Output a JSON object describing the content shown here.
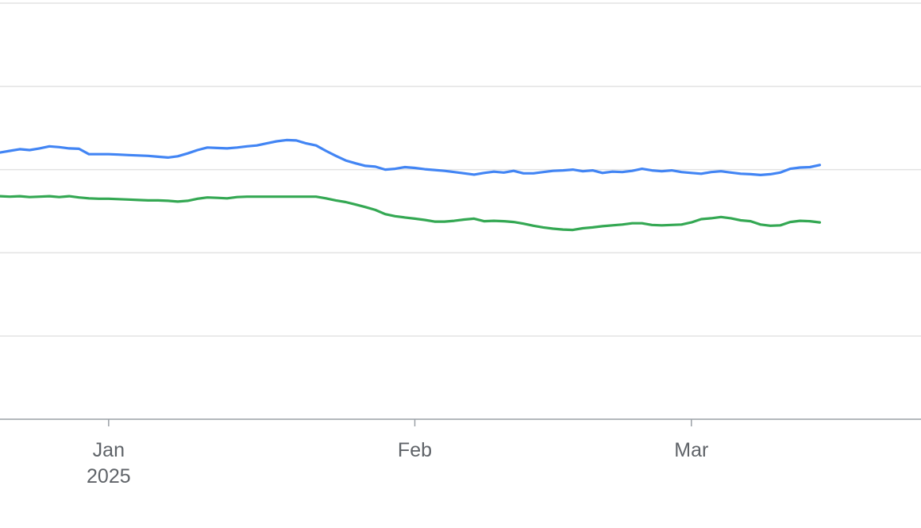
{
  "chart_data": {
    "type": "line",
    "title": "",
    "xlabel": "",
    "ylabel": "",
    "x_axis": {
      "type": "date",
      "range": [
        "2024-12-21",
        "2025-03-31"
      ],
      "ticks": [
        {
          "date": "2025-01-01",
          "label": "Jan",
          "sublabel": "2025"
        },
        {
          "date": "2025-02-01",
          "label": "Feb",
          "sublabel": ""
        },
        {
          "date": "2025-03-01",
          "label": "Mar",
          "sublabel": ""
        }
      ]
    },
    "y_axis": {
      "tick_labels_visible": false,
      "ylim": [
        0,
        100
      ],
      "gridlines": [
        20,
        40,
        60,
        80,
        100
      ]
    },
    "grid": true,
    "legend": "none",
    "series": [
      {
        "color": "#4285f4",
        "points": [
          [
            "2024-12-21",
            64.1
          ],
          [
            "2024-12-22",
            64.5
          ],
          [
            "2024-12-23",
            64.9
          ],
          [
            "2024-12-24",
            64.7
          ],
          [
            "2024-12-25",
            65.1
          ],
          [
            "2024-12-26",
            65.6
          ],
          [
            "2024-12-27",
            65.4
          ],
          [
            "2024-12-28",
            65.1
          ],
          [
            "2024-12-29",
            65.0
          ],
          [
            "2024-12-30",
            63.7
          ],
          [
            "2024-12-31",
            63.7
          ],
          [
            "2025-01-01",
            63.7
          ],
          [
            "2025-01-02",
            63.6
          ],
          [
            "2025-01-03",
            63.5
          ],
          [
            "2025-01-04",
            63.4
          ],
          [
            "2025-01-05",
            63.3
          ],
          [
            "2025-01-06",
            63.1
          ],
          [
            "2025-01-07",
            62.9
          ],
          [
            "2025-01-08",
            63.2
          ],
          [
            "2025-01-09",
            63.9
          ],
          [
            "2025-01-10",
            64.7
          ],
          [
            "2025-01-11",
            65.3
          ],
          [
            "2025-01-12",
            65.2
          ],
          [
            "2025-01-13",
            65.1
          ],
          [
            "2025-01-14",
            65.3
          ],
          [
            "2025-01-15",
            65.6
          ],
          [
            "2025-01-16",
            65.8
          ],
          [
            "2025-01-17",
            66.3
          ],
          [
            "2025-01-18",
            66.8
          ],
          [
            "2025-01-19",
            67.1
          ],
          [
            "2025-01-20",
            67.0
          ],
          [
            "2025-01-21",
            66.3
          ],
          [
            "2025-01-22",
            65.8
          ],
          [
            "2025-01-23",
            64.5
          ],
          [
            "2025-01-24",
            63.3
          ],
          [
            "2025-01-25",
            62.2
          ],
          [
            "2025-01-26",
            61.5
          ],
          [
            "2025-01-27",
            60.9
          ],
          [
            "2025-01-28",
            60.7
          ],
          [
            "2025-01-29",
            60.0
          ],
          [
            "2025-01-30",
            60.2
          ],
          [
            "2025-01-31",
            60.6
          ],
          [
            "2025-02-01",
            60.4
          ],
          [
            "2025-02-02",
            60.1
          ],
          [
            "2025-02-03",
            59.9
          ],
          [
            "2025-02-04",
            59.7
          ],
          [
            "2025-02-05",
            59.4
          ],
          [
            "2025-02-06",
            59.1
          ],
          [
            "2025-02-07",
            58.8
          ],
          [
            "2025-02-08",
            59.2
          ],
          [
            "2025-02-09",
            59.5
          ],
          [
            "2025-02-10",
            59.3
          ],
          [
            "2025-02-11",
            59.7
          ],
          [
            "2025-02-12",
            59.1
          ],
          [
            "2025-02-13",
            59.1
          ],
          [
            "2025-02-14",
            59.4
          ],
          [
            "2025-02-15",
            59.7
          ],
          [
            "2025-02-16",
            59.8
          ],
          [
            "2025-02-17",
            60.0
          ],
          [
            "2025-02-18",
            59.6
          ],
          [
            "2025-02-19",
            59.8
          ],
          [
            "2025-02-20",
            59.2
          ],
          [
            "2025-02-21",
            59.5
          ],
          [
            "2025-02-22",
            59.4
          ],
          [
            "2025-02-23",
            59.7
          ],
          [
            "2025-02-24",
            60.2
          ],
          [
            "2025-02-25",
            59.8
          ],
          [
            "2025-02-26",
            59.6
          ],
          [
            "2025-02-27",
            59.8
          ],
          [
            "2025-02-28",
            59.4
          ],
          [
            "2025-03-01",
            59.2
          ],
          [
            "2025-03-02",
            59.0
          ],
          [
            "2025-03-03",
            59.4
          ],
          [
            "2025-03-04",
            59.6
          ],
          [
            "2025-03-05",
            59.3
          ],
          [
            "2025-03-06",
            59.0
          ],
          [
            "2025-03-07",
            58.9
          ],
          [
            "2025-03-08",
            58.7
          ],
          [
            "2025-03-09",
            58.9
          ],
          [
            "2025-03-10",
            59.3
          ],
          [
            "2025-03-11",
            60.2
          ],
          [
            "2025-03-12",
            60.5
          ],
          [
            "2025-03-13",
            60.6
          ],
          [
            "2025-03-14",
            61.1
          ]
        ]
      },
      {
        "color": "#34a853",
        "points": [
          [
            "2024-12-21",
            53.6
          ],
          [
            "2024-12-22",
            53.5
          ],
          [
            "2024-12-23",
            53.6
          ],
          [
            "2024-12-24",
            53.4
          ],
          [
            "2024-12-25",
            53.5
          ],
          [
            "2024-12-26",
            53.6
          ],
          [
            "2024-12-27",
            53.4
          ],
          [
            "2024-12-28",
            53.6
          ],
          [
            "2024-12-29",
            53.3
          ],
          [
            "2024-12-30",
            53.1
          ],
          [
            "2024-12-31",
            53.0
          ],
          [
            "2025-01-01",
            53.0
          ],
          [
            "2025-01-02",
            52.9
          ],
          [
            "2025-01-03",
            52.8
          ],
          [
            "2025-01-04",
            52.7
          ],
          [
            "2025-01-05",
            52.6
          ],
          [
            "2025-01-06",
            52.6
          ],
          [
            "2025-01-07",
            52.5
          ],
          [
            "2025-01-08",
            52.3
          ],
          [
            "2025-01-09",
            52.5
          ],
          [
            "2025-01-10",
            53.0
          ],
          [
            "2025-01-11",
            53.3
          ],
          [
            "2025-01-12",
            53.2
          ],
          [
            "2025-01-13",
            53.1
          ],
          [
            "2025-01-14",
            53.4
          ],
          [
            "2025-01-15",
            53.5
          ],
          [
            "2025-01-16",
            53.5
          ],
          [
            "2025-01-17",
            53.5
          ],
          [
            "2025-01-18",
            53.5
          ],
          [
            "2025-01-19",
            53.5
          ],
          [
            "2025-01-20",
            53.5
          ],
          [
            "2025-01-21",
            53.5
          ],
          [
            "2025-01-22",
            53.5
          ],
          [
            "2025-01-23",
            53.1
          ],
          [
            "2025-01-24",
            52.6
          ],
          [
            "2025-01-25",
            52.2
          ],
          [
            "2025-01-26",
            51.6
          ],
          [
            "2025-01-27",
            51.0
          ],
          [
            "2025-01-28",
            50.3
          ],
          [
            "2025-01-29",
            49.3
          ],
          [
            "2025-01-30",
            48.8
          ],
          [
            "2025-01-31",
            48.5
          ],
          [
            "2025-02-01",
            48.2
          ],
          [
            "2025-02-02",
            47.9
          ],
          [
            "2025-02-03",
            47.5
          ],
          [
            "2025-02-04",
            47.5
          ],
          [
            "2025-02-05",
            47.7
          ],
          [
            "2025-02-06",
            48.0
          ],
          [
            "2025-02-07",
            48.2
          ],
          [
            "2025-02-08",
            47.6
          ],
          [
            "2025-02-09",
            47.7
          ],
          [
            "2025-02-10",
            47.6
          ],
          [
            "2025-02-11",
            47.4
          ],
          [
            "2025-02-12",
            47.0
          ],
          [
            "2025-02-13",
            46.5
          ],
          [
            "2025-02-14",
            46.1
          ],
          [
            "2025-02-15",
            45.8
          ],
          [
            "2025-02-16",
            45.6
          ],
          [
            "2025-02-17",
            45.5
          ],
          [
            "2025-02-18",
            45.9
          ],
          [
            "2025-02-19",
            46.1
          ],
          [
            "2025-02-20",
            46.4
          ],
          [
            "2025-02-21",
            46.6
          ],
          [
            "2025-02-22",
            46.8
          ],
          [
            "2025-02-23",
            47.1
          ],
          [
            "2025-02-24",
            47.1
          ],
          [
            "2025-02-25",
            46.7
          ],
          [
            "2025-02-26",
            46.6
          ],
          [
            "2025-02-27",
            46.7
          ],
          [
            "2025-02-28",
            46.8
          ],
          [
            "2025-03-01",
            47.3
          ],
          [
            "2025-03-02",
            48.1
          ],
          [
            "2025-03-03",
            48.3
          ],
          [
            "2025-03-04",
            48.6
          ],
          [
            "2025-03-05",
            48.3
          ],
          [
            "2025-03-06",
            47.8
          ],
          [
            "2025-03-07",
            47.6
          ],
          [
            "2025-03-08",
            46.8
          ],
          [
            "2025-03-09",
            46.5
          ],
          [
            "2025-03-10",
            46.6
          ],
          [
            "2025-03-11",
            47.4
          ],
          [
            "2025-03-12",
            47.7
          ],
          [
            "2025-03-13",
            47.6
          ],
          [
            "2025-03-14",
            47.3
          ]
        ]
      }
    ]
  }
}
